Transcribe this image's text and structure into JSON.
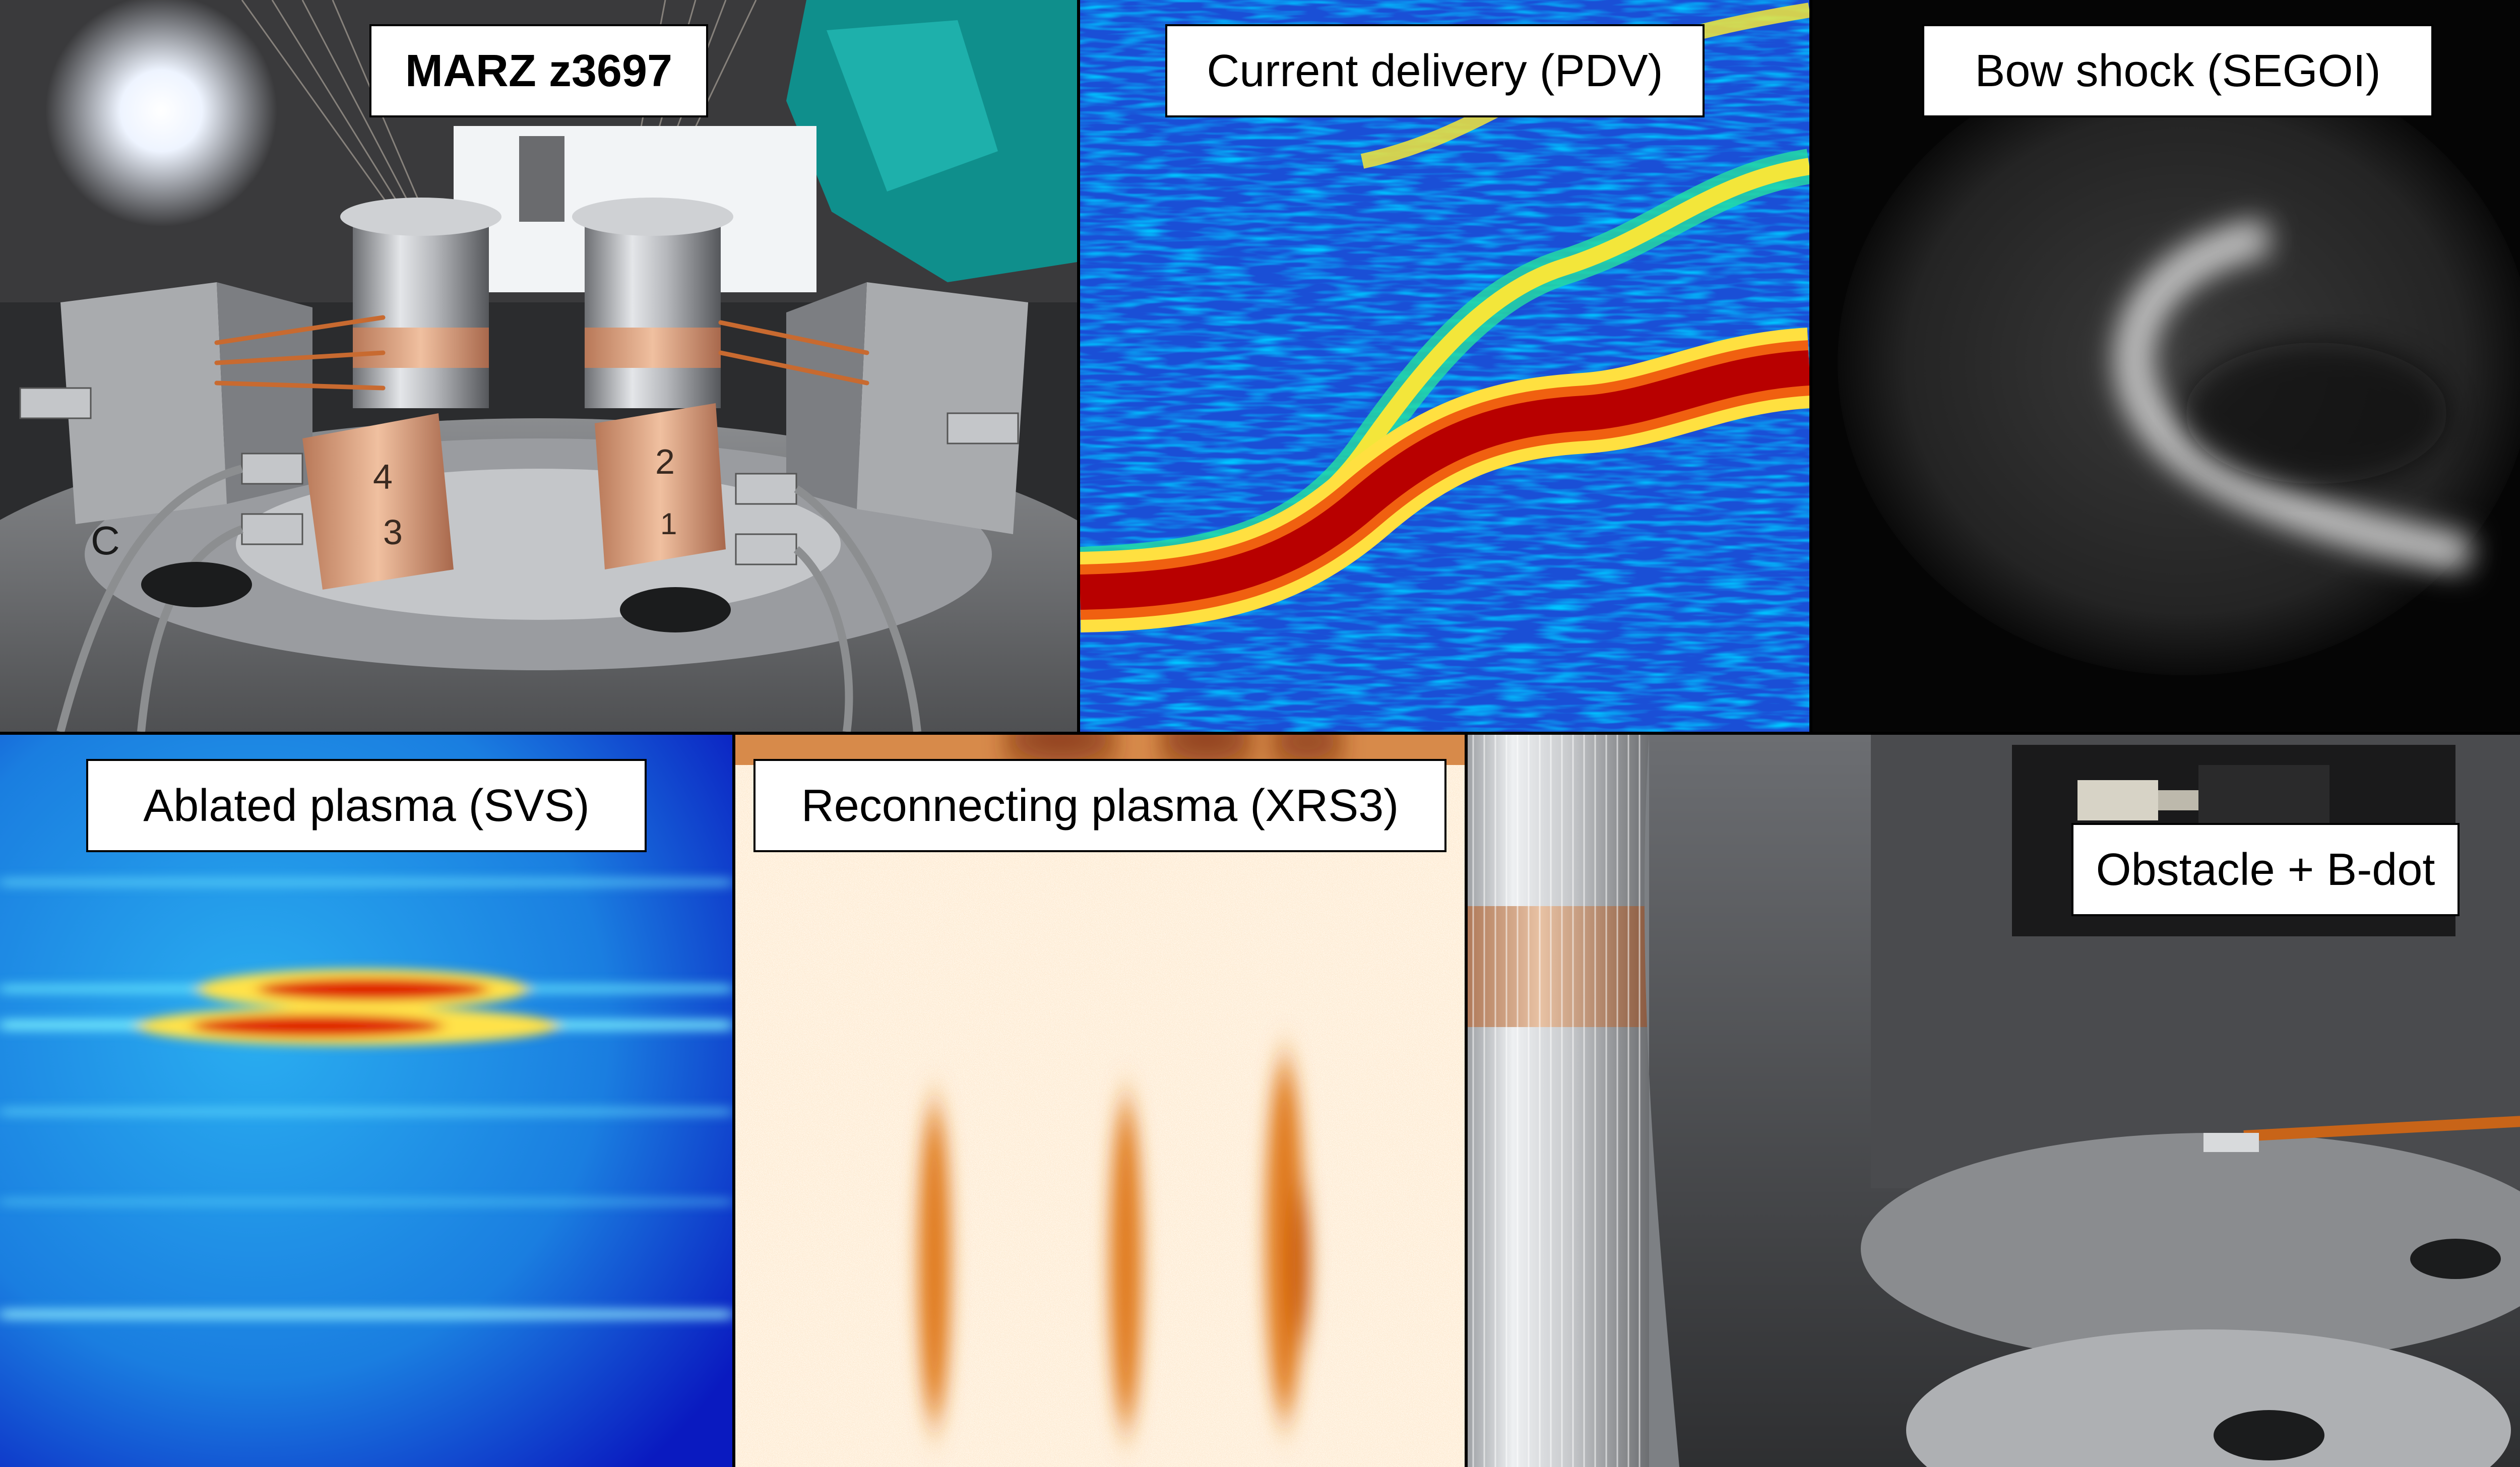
{
  "panels": [
    {
      "id": "marz",
      "label": "MARZ z3697"
    },
    {
      "id": "pdv",
      "label": "Current delivery (PDV)"
    },
    {
      "id": "segoi",
      "label": "Bow shock (SEGOI)"
    },
    {
      "id": "svs",
      "label": "Ablated plasma (SVS)"
    },
    {
      "id": "xrs3",
      "label": "Reconnecting plasma (XRS3)"
    },
    {
      "id": "bdot",
      "label": "Obstacle + B-dot"
    }
  ],
  "hardware_labels": {
    "block_left_top": "4",
    "block_left_bottom": "3",
    "block_right_top": "2",
    "block_right_bottom": "1",
    "flange_letter": "C"
  },
  "colors": {
    "pdv_background": "#1a4fd6",
    "pdv_trace_core": "#b80000",
    "svs_background": "#1a8ee8",
    "xrs3_background": "#fff4e4",
    "xrs3_streak": "#e07a1e"
  }
}
